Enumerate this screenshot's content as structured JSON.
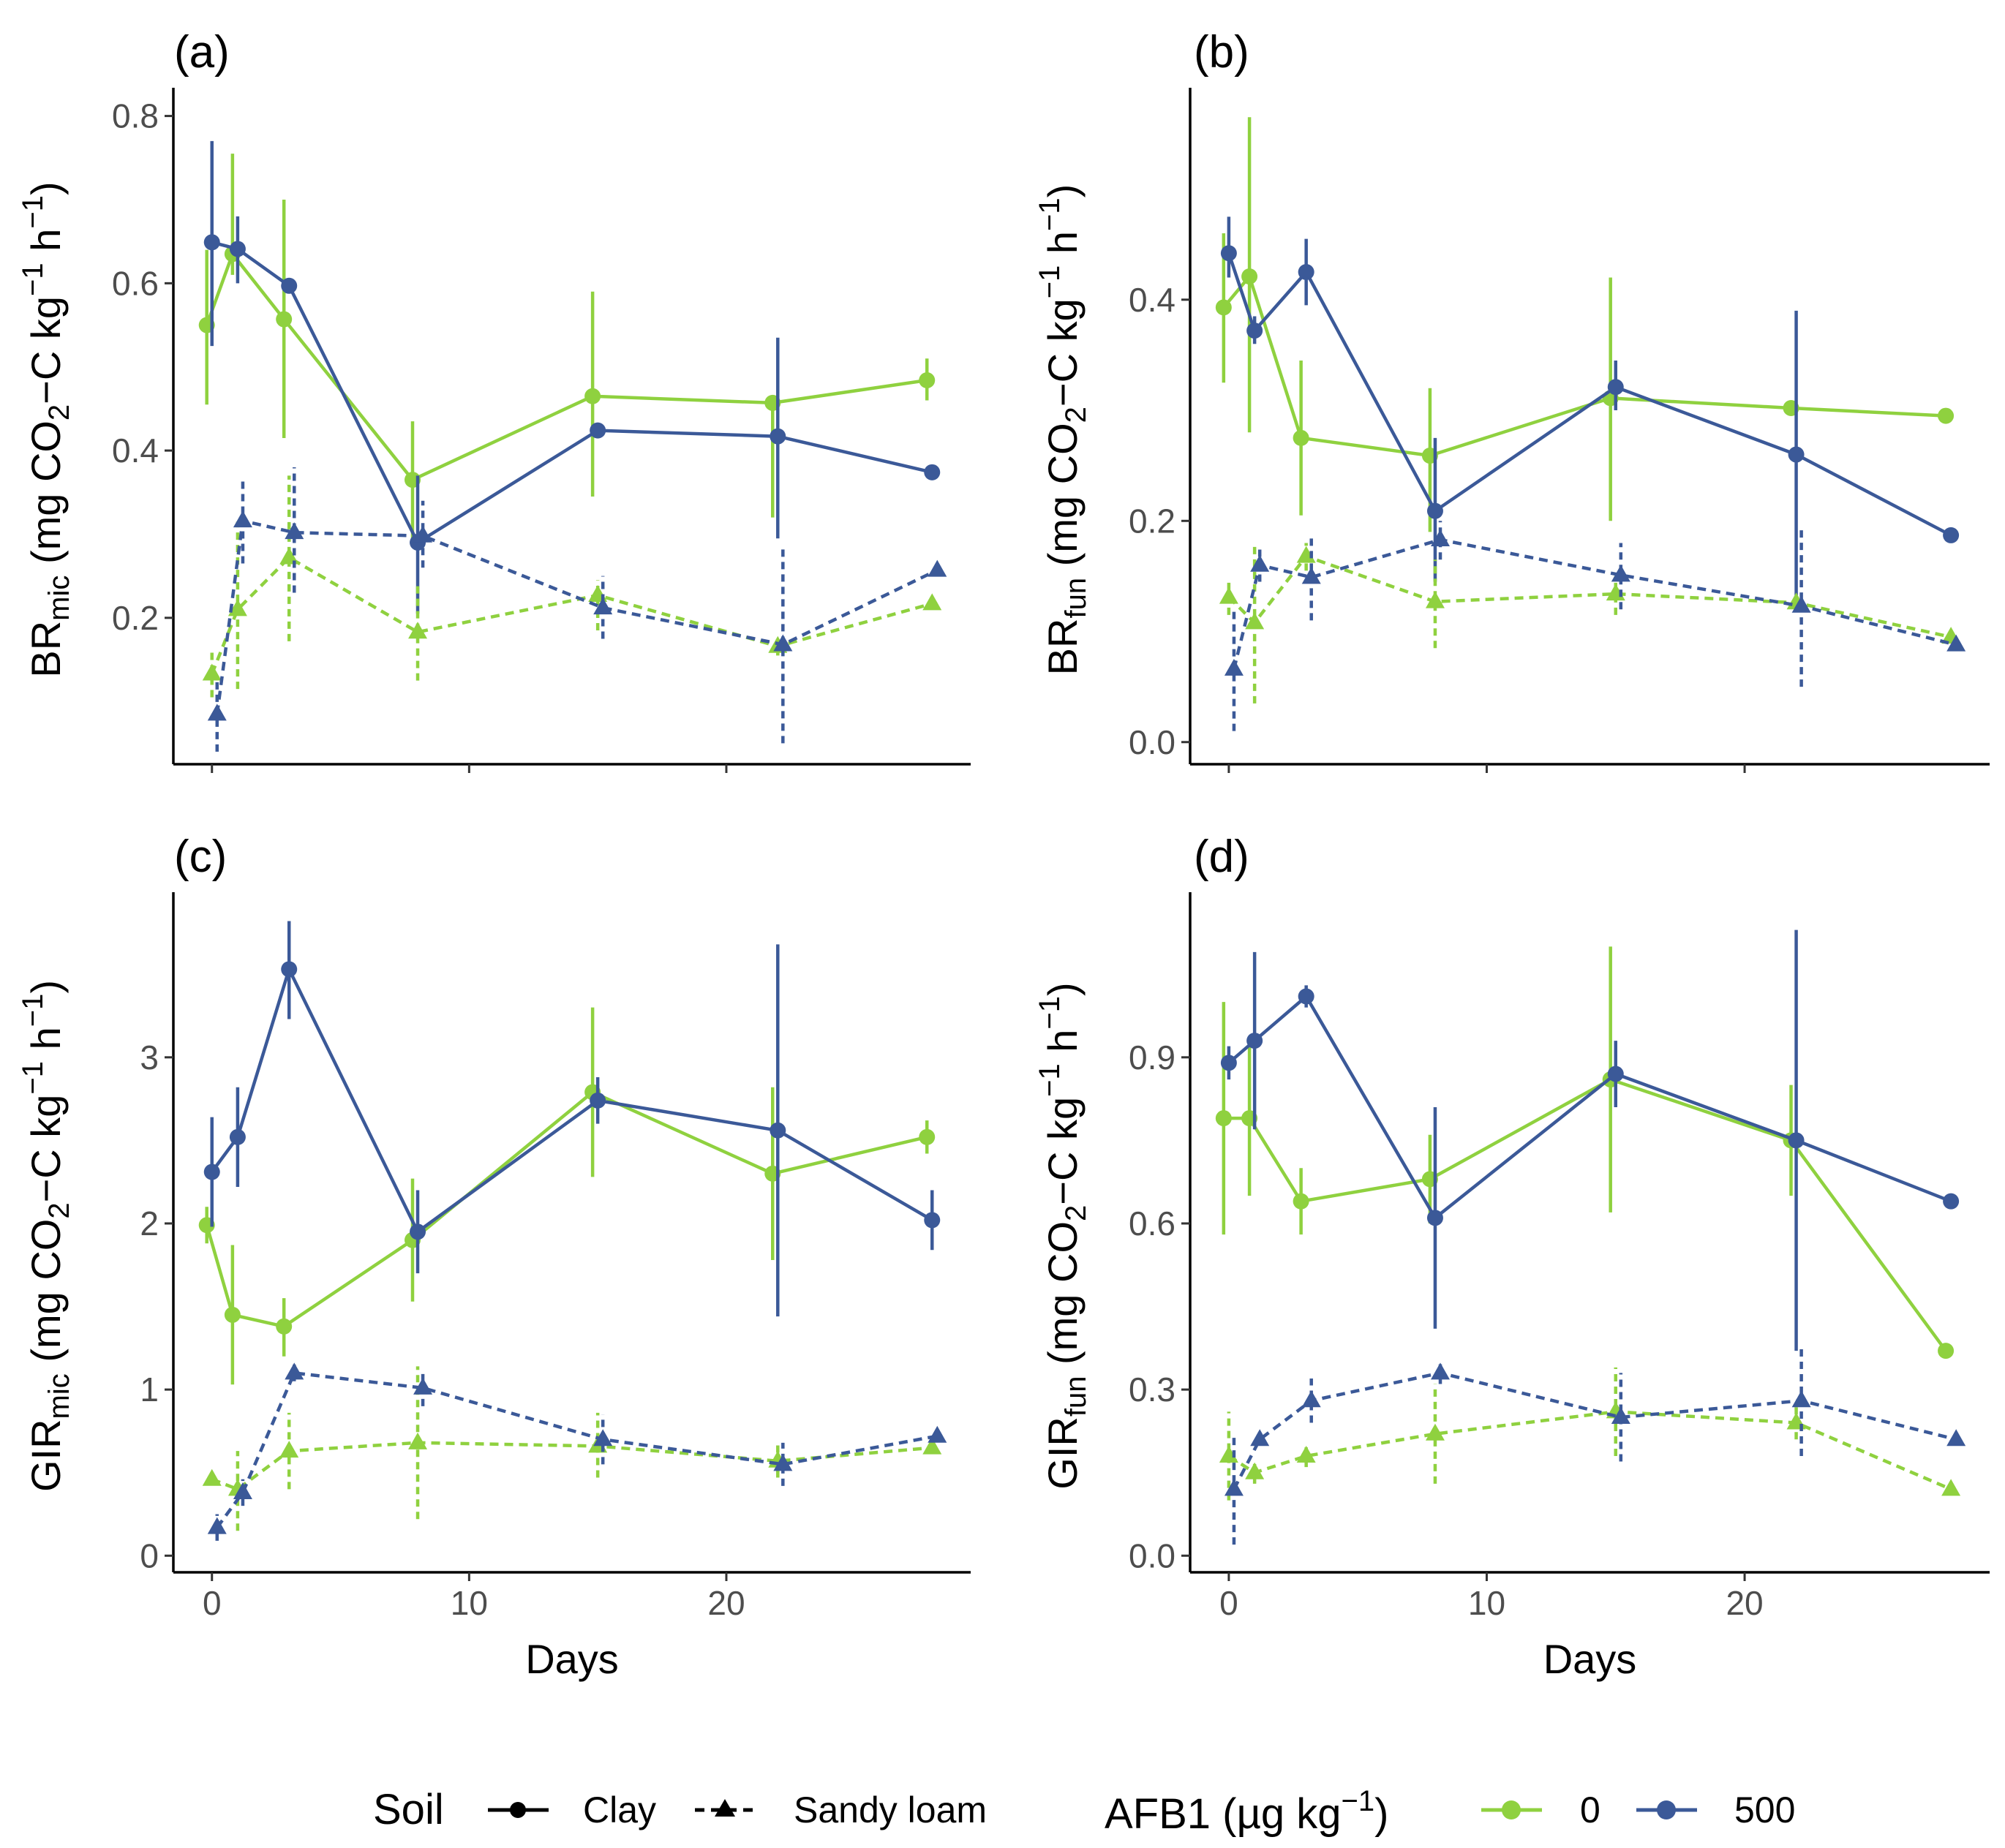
{
  "legend": {
    "soil_title": "Soil",
    "soil_items": [
      {
        "label": "Clay",
        "linetype": "solid",
        "shape": "circle"
      },
      {
        "label": "Sandy loam",
        "linetype": "dashed",
        "shape": "triangle"
      }
    ],
    "afb1_title": "AFB1 (µg kg",
    "afb1_title_sup": "−1",
    "afb1_title_end": ")",
    "afb1_items": [
      {
        "label": "0",
        "color": "#8fd13f"
      },
      {
        "label": "500",
        "color": "#3b5998"
      }
    ]
  },
  "colors": {
    "afb1_0": "#8fd13f",
    "afb1_500": "#3b5998"
  },
  "chart_data": [
    {
      "type": "line",
      "panel_label": "(a)",
      "ylabel_main": "BR",
      "ylabel_sub": "mic",
      "ylabel_rest": " (mg CO",
      "ylabel_rest2": "−C kg",
      "ylabel_rest3": " h",
      "ylabel_close": ")",
      "xlabel": "",
      "xlim": [
        -1.5,
        29.5
      ],
      "ylim": [
        0.025,
        0.825
      ],
      "xticks": [
        0,
        10,
        20
      ],
      "xtick_labels": [
        "",
        "",
        ""
      ],
      "yticks": [
        0.2,
        0.4,
        0.6,
        0.8
      ],
      "ytick_labels": [
        "0.2",
        "0.4",
        "0.6",
        "0.8"
      ],
      "series": [
        {
          "name": "Clay, AFB1 0",
          "soil": "Clay",
          "afb1": "0",
          "x": [
            -0.2,
            0.8,
            2.8,
            7.8,
            14.8,
            21.8,
            27.8
          ],
          "y": [
            0.55,
            0.635,
            0.557,
            0.365,
            0.465,
            0.457,
            0.484
          ],
          "err_lo": [
            0.455,
            0.61,
            0.415,
            0.295,
            0.345,
            0.32,
            0.46
          ],
          "err_hi": [
            0.64,
            0.755,
            0.7,
            0.435,
            0.59,
            0.465,
            0.51
          ]
        },
        {
          "name": "Clay, AFB1 500",
          "soil": "Clay",
          "afb1": "500",
          "x": [
            0,
            1,
            3,
            8,
            15,
            22,
            28
          ],
          "y": [
            0.649,
            0.641,
            0.597,
            0.29,
            0.424,
            0.417,
            0.374
          ],
          "err_lo": [
            0.525,
            0.6,
            0.595,
            0.205,
            0.425,
            0.295,
            0.372
          ],
          "err_hi": [
            0.77,
            0.68,
            0.6,
            0.37,
            0.425,
            0.535,
            0.376
          ]
        },
        {
          "name": "Sandy loam, AFB1 0",
          "soil": "Sandy loam",
          "afb1": "0",
          "x": [
            0,
            1,
            3,
            8,
            15,
            22,
            28
          ],
          "y": [
            0.133,
            0.21,
            0.272,
            0.183,
            0.227,
            0.166,
            0.217
          ],
          "err_lo": [
            0.105,
            0.115,
            0.172,
            0.125,
            0.185,
            0.155,
            0.213
          ],
          "err_hi": [
            0.16,
            0.315,
            0.37,
            0.24,
            0.245,
            0.175,
            0.221
          ]
        },
        {
          "name": "Sandy loam, AFB1 500",
          "soil": "Sandy loam",
          "afb1": "500",
          "x": [
            0.2,
            1.2,
            3.2,
            8.2,
            15.2,
            22.2,
            28.2
          ],
          "y": [
            0.085,
            0.316,
            0.302,
            0.298,
            0.212,
            0.168,
            0.257
          ],
          "err_lo": [
            0.04,
            0.265,
            0.23,
            0.26,
            0.175,
            0.05,
            0.255
          ],
          "err_hi": [
            0.128,
            0.365,
            0.38,
            0.34,
            0.25,
            0.285,
            0.259
          ]
        }
      ]
    },
    {
      "type": "line",
      "panel_label": "(b)",
      "ylabel_main": "BR",
      "ylabel_sub": "fun",
      "ylabel_rest": " (mg CO",
      "ylabel_rest2": "−C kg",
      "ylabel_rest3": " h",
      "ylabel_close": ")",
      "xlabel": "",
      "xlim": [
        -1.5,
        29.5
      ],
      "ylim": [
        -0.02,
        0.585
      ],
      "xticks": [
        0,
        10,
        20
      ],
      "xtick_labels": [
        "",
        "",
        ""
      ],
      "yticks": [
        0.0,
        0.2,
        0.4
      ],
      "ytick_labels": [
        "0.0",
        "0.2",
        "0.4"
      ],
      "series": [
        {
          "name": "Clay, AFB1 0",
          "soil": "Clay",
          "afb1": "0",
          "x": [
            -0.2,
            0.8,
            2.8,
            7.8,
            14.8,
            21.8,
            27.8
          ],
          "y": [
            0.393,
            0.421,
            0.275,
            0.259,
            0.311,
            0.302,
            0.295
          ],
          "err_lo": [
            0.325,
            0.28,
            0.205,
            0.19,
            0.2,
            0.3,
            0.292
          ],
          "err_hi": [
            0.46,
            0.565,
            0.345,
            0.32,
            0.42,
            0.305,
            0.298
          ]
        },
        {
          "name": "Clay, AFB1 500",
          "soil": "Clay",
          "afb1": "500",
          "x": [
            0,
            1,
            3,
            8,
            15,
            22,
            28
          ],
          "y": [
            0.442,
            0.372,
            0.425,
            0.209,
            0.321,
            0.26,
            0.187
          ],
          "err_lo": [
            0.42,
            0.36,
            0.395,
            0.145,
            0.3,
            0.13,
            0.185
          ],
          "err_hi": [
            0.475,
            0.385,
            0.455,
            0.275,
            0.345,
            0.39,
            0.189
          ]
        },
        {
          "name": "Sandy loam, AFB1 0",
          "soil": "Sandy loam",
          "afb1": "0",
          "x": [
            0,
            1,
            3,
            8,
            15,
            22,
            28
          ],
          "y": [
            0.131,
            0.108,
            0.168,
            0.127,
            0.134,
            0.126,
            0.095
          ],
          "err_lo": [
            0.115,
            0.035,
            0.155,
            0.085,
            0.115,
            0.12,
            0.093
          ],
          "err_hi": [
            0.148,
            0.18,
            0.18,
            0.165,
            0.15,
            0.13,
            0.097
          ]
        },
        {
          "name": "Sandy loam, AFB1 500",
          "soil": "Sandy loam",
          "afb1": "500",
          "x": [
            0.2,
            1.2,
            3.2,
            8.2,
            15.2,
            22.2,
            28.2
          ],
          "y": [
            0.066,
            0.16,
            0.149,
            0.183,
            0.151,
            0.123,
            0.088
          ],
          "err_lo": [
            0.01,
            0.145,
            0.11,
            0.165,
            0.12,
            0.05,
            0.086
          ],
          "err_hi": [
            0.12,
            0.175,
            0.185,
            0.2,
            0.18,
            0.195,
            0.09
          ]
        }
      ]
    },
    {
      "type": "line",
      "panel_label": "(c)",
      "ylabel_main": "GIR",
      "ylabel_sub": "mic",
      "ylabel_rest": " (mg CO",
      "ylabel_rest2": "−C kg",
      "ylabel_rest3": " h",
      "ylabel_close": ")",
      "xlabel": "Days",
      "xlim": [
        -1.5,
        29.5
      ],
      "ylim": [
        -0.1,
        3.95
      ],
      "xticks": [
        0,
        10,
        20
      ],
      "xtick_labels": [
        "0",
        "10",
        "20"
      ],
      "yticks": [
        0,
        1,
        2,
        3
      ],
      "ytick_labels": [
        "0",
        "1",
        "2",
        "3"
      ],
      "series": [
        {
          "name": "Clay, AFB1 0",
          "soil": "Clay",
          "afb1": "0",
          "x": [
            -0.2,
            0.8,
            2.8,
            7.8,
            14.8,
            21.8,
            27.8
          ],
          "y": [
            1.99,
            1.45,
            1.38,
            1.9,
            2.79,
            2.3,
            2.52
          ],
          "err_lo": [
            1.88,
            1.03,
            1.2,
            1.53,
            2.28,
            1.78,
            2.42
          ],
          "err_hi": [
            2.1,
            1.87,
            1.55,
            2.27,
            3.3,
            2.82,
            2.62
          ]
        },
        {
          "name": "Clay, AFB1 500",
          "soil": "Clay",
          "afb1": "500",
          "x": [
            0,
            1,
            3,
            8,
            15,
            22,
            28
          ],
          "y": [
            2.31,
            2.52,
            3.53,
            1.95,
            2.74,
            2.56,
            2.02
          ],
          "err_lo": [
            1.98,
            2.22,
            3.23,
            1.7,
            2.6,
            1.44,
            1.84
          ],
          "err_hi": [
            2.64,
            2.82,
            3.82,
            2.2,
            2.88,
            3.68,
            2.2
          ]
        },
        {
          "name": "Sandy loam, AFB1 0",
          "soil": "Sandy loam",
          "afb1": "0",
          "x": [
            0,
            1,
            3,
            8,
            15,
            22,
            28
          ],
          "y": [
            0.46,
            0.4,
            0.63,
            0.68,
            0.66,
            0.57,
            0.65
          ],
          "err_lo": [
            0.43,
            0.15,
            0.4,
            0.22,
            0.47,
            0.47,
            0.62
          ],
          "err_hi": [
            0.49,
            0.63,
            0.86,
            1.14,
            0.86,
            0.67,
            0.68
          ]
        },
        {
          "name": "Sandy loam, AFB1 500",
          "soil": "Sandy loam",
          "afb1": "500",
          "x": [
            0.2,
            1.2,
            3.2,
            8.2,
            15.2,
            22.2,
            28.2
          ],
          "y": [
            0.17,
            0.38,
            1.1,
            1.01,
            0.7,
            0.55,
            0.72
          ],
          "err_lo": [
            0.09,
            0.3,
            1.05,
            0.9,
            0.55,
            0.42,
            0.7
          ],
          "err_hi": [
            0.25,
            0.46,
            1.15,
            1.12,
            0.85,
            0.68,
            0.74
          ]
        }
      ]
    },
    {
      "type": "line",
      "panel_label": "(d)",
      "ylabel_main": "GIR",
      "ylabel_sub": "fun",
      "ylabel_rest": " (mg CO",
      "ylabel_rest2": "−C kg",
      "ylabel_rest3": " h",
      "ylabel_close": ")",
      "xlabel": "Days",
      "xlim": [
        -1.5,
        29.5
      ],
      "ylim": [
        -0.03,
        1.185
      ],
      "xticks": [
        0,
        10,
        20
      ],
      "xtick_labels": [
        "0",
        "10",
        "20"
      ],
      "yticks": [
        0.0,
        0.3,
        0.6,
        0.9
      ],
      "ytick_labels": [
        "0.0",
        "0.3",
        "0.6",
        "0.9"
      ],
      "series": [
        {
          "name": "Clay, AFB1 0",
          "soil": "Clay",
          "afb1": "0",
          "x": [
            -0.2,
            0.8,
            2.8,
            7.8,
            14.8,
            21.8,
            27.8
          ],
          "y": [
            0.79,
            0.79,
            0.64,
            0.68,
            0.86,
            0.75,
            0.37
          ],
          "err_lo": [
            0.58,
            0.65,
            0.58,
            0.6,
            0.62,
            0.65,
            0.36
          ],
          "err_hi": [
            1.0,
            0.93,
            0.7,
            0.76,
            1.1,
            0.85,
            0.38
          ]
        },
        {
          "name": "Clay, AFB1 500",
          "soil": "Clay",
          "afb1": "500",
          "x": [
            0,
            1,
            3,
            8,
            15,
            22,
            28
          ],
          "y": [
            0.89,
            0.93,
            1.01,
            0.61,
            0.87,
            0.75,
            0.64
          ],
          "err_lo": [
            0.86,
            0.77,
            0.99,
            0.41,
            0.81,
            0.37,
            0.63
          ],
          "err_hi": [
            0.92,
            1.09,
            1.03,
            0.81,
            0.93,
            1.13,
            0.65
          ]
        },
        {
          "name": "Sandy loam, AFB1 0",
          "soil": "Sandy loam",
          "afb1": "0",
          "x": [
            0,
            1,
            3,
            8,
            15,
            22,
            28
          ],
          "y": [
            0.18,
            0.15,
            0.18,
            0.22,
            0.26,
            0.24,
            0.12
          ],
          "err_lo": [
            0.1,
            0.13,
            0.16,
            0.13,
            0.18,
            0.21,
            0.11
          ],
          "err_hi": [
            0.26,
            0.17,
            0.2,
            0.31,
            0.34,
            0.27,
            0.13
          ]
        },
        {
          "name": "Sandy loam, AFB1 500",
          "soil": "Sandy loam",
          "afb1": "500",
          "x": [
            0.2,
            1.2,
            3.2,
            8.2,
            15.2,
            22.2,
            28.2
          ],
          "y": [
            0.12,
            0.21,
            0.28,
            0.33,
            0.25,
            0.28,
            0.21
          ],
          "err_lo": [
            0.02,
            0.2,
            0.24,
            0.31,
            0.17,
            0.18,
            0.2
          ],
          "err_hi": [
            0.22,
            0.22,
            0.32,
            0.35,
            0.33,
            0.38,
            0.22
          ]
        }
      ]
    }
  ]
}
